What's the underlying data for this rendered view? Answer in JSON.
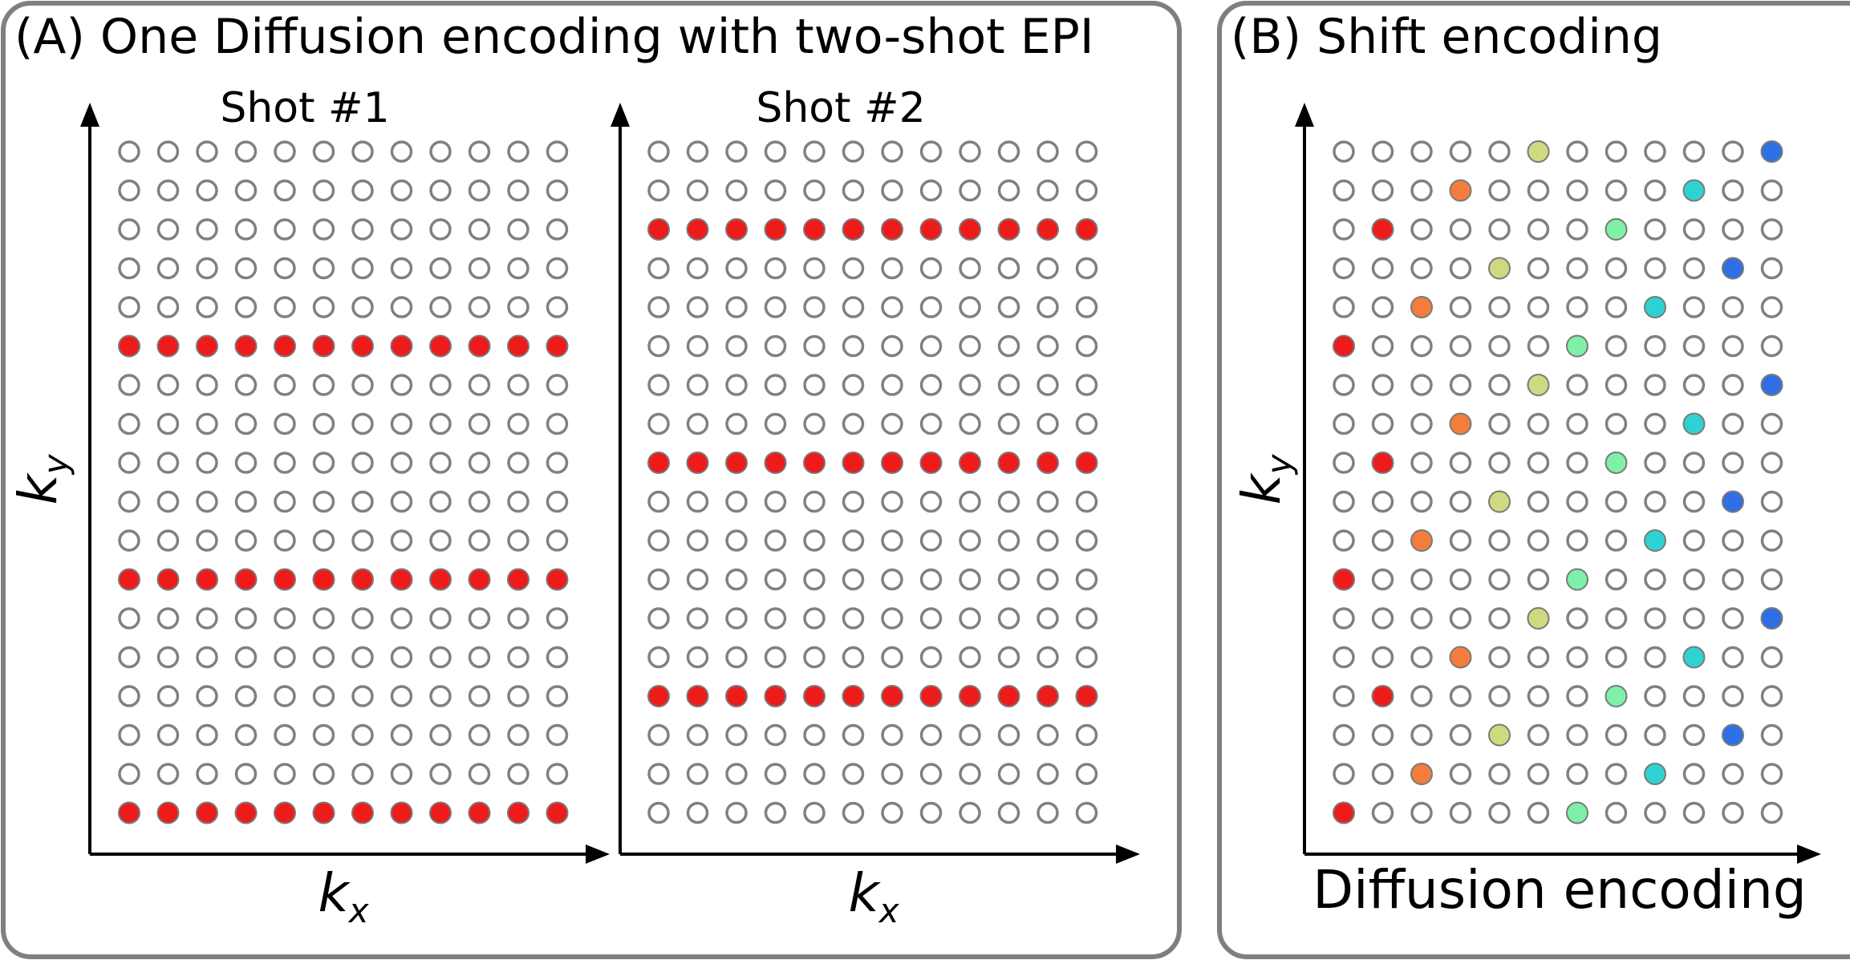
{
  "panel_a": {
    "title": "(A) One Diffusion encoding with two-shot EPI",
    "shot1_label": "Shot #1",
    "shot2_label": "Shot #2",
    "ylabel_main": "k",
    "ylabel_sub": "y",
    "xlabel_main": "k",
    "xlabel_sub": "x",
    "grid_columns": 12,
    "grid_rows": 18,
    "shot1_filled_rows": [
      5,
      11,
      17
    ],
    "shot2_filled_rows": [
      2,
      8,
      14
    ]
  },
  "panel_b": {
    "title": "(B) Shift encoding",
    "ylabel_main": "k",
    "ylabel_sub": "y",
    "xlabel": "Diffusion encoding",
    "grid_columns": 12,
    "grid_rows": 18,
    "row_period": 6,
    "filled_points": [
      {
        "col": 5,
        "row": 0,
        "color": "#cfd97f"
      },
      {
        "col": 11,
        "row": 0,
        "color": "#2f6fe6"
      },
      {
        "col": 3,
        "row": 1,
        "color": "#f47c3c"
      },
      {
        "col": 9,
        "row": 1,
        "color": "#2fd2d2"
      },
      {
        "col": 1,
        "row": 2,
        "color": "#ee1b1b"
      },
      {
        "col": 7,
        "row": 2,
        "color": "#7ef0a8"
      },
      {
        "col": 4,
        "row": 3,
        "color": "#cfd97f"
      },
      {
        "col": 10,
        "row": 3,
        "color": "#2f6fe6"
      },
      {
        "col": 2,
        "row": 4,
        "color": "#f47c3c"
      },
      {
        "col": 8,
        "row": 4,
        "color": "#2fd2d2"
      },
      {
        "col": 0,
        "row": 5,
        "color": "#ee1b1b"
      },
      {
        "col": 6,
        "row": 5,
        "color": "#7ef0a8"
      }
    ]
  },
  "colors": {
    "frame": "#7f7f7f",
    "open_circle_stroke": "#808080",
    "filled_red": "#ee1b1b",
    "axis": "#000000"
  }
}
